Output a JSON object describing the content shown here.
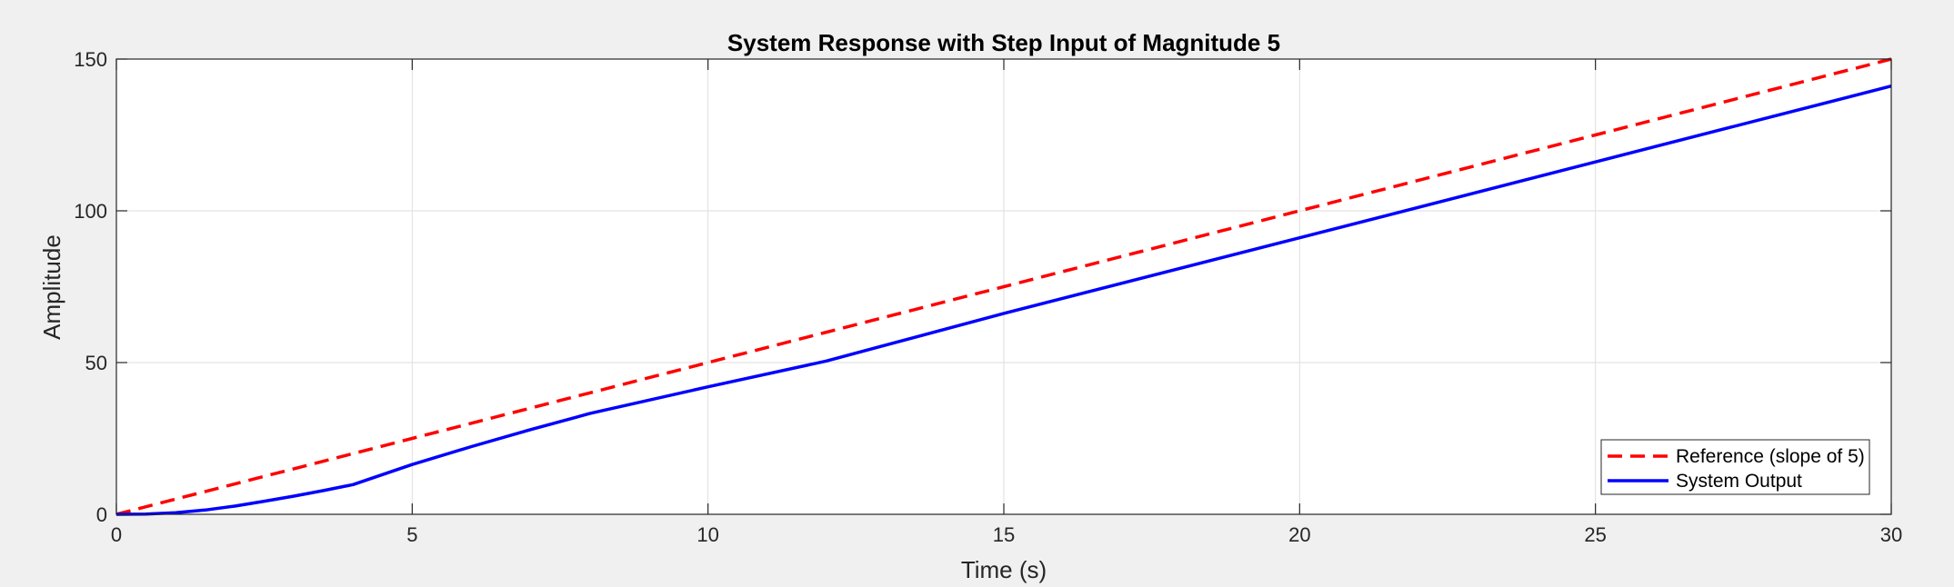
{
  "chart_data": {
    "type": "line",
    "title": "System Response with Step Input of Magnitude 5",
    "xlabel": "Time (s)",
    "ylabel": "Amplitude",
    "xlim": [
      0,
      30
    ],
    "ylim": [
      0,
      150
    ],
    "xticks": [
      0,
      5,
      10,
      15,
      20,
      25,
      30
    ],
    "yticks": [
      0,
      50,
      100,
      150
    ],
    "xtick_labels": [
      "0",
      "5",
      "10",
      "15",
      "20",
      "25",
      "30"
    ],
    "ytick_labels": [
      "0",
      "50",
      "100",
      "150"
    ],
    "grid": true,
    "legend_position": "bottom-right",
    "series": [
      {
        "name": "Reference (slope of 5)",
        "color": "#ff0000",
        "style": "dashed",
        "x": [
          0,
          5,
          10,
          15,
          20,
          25,
          30
        ],
        "values": [
          0,
          25,
          50,
          75,
          100,
          125,
          150
        ]
      },
      {
        "name": "System Output",
        "color": "#0000ff",
        "style": "solid",
        "x": [
          0,
          0.5,
          1,
          1.5,
          2,
          2.5,
          3,
          3.5,
          4,
          5,
          6,
          7,
          8,
          10,
          12,
          15,
          20,
          25,
          30
        ],
        "values": [
          0,
          0.1,
          0.5,
          1.4,
          2.7,
          4.3,
          6.0,
          7.8,
          9.8,
          16.4,
          22.3,
          27.9,
          33.2,
          42.0,
          50.5,
          66.2,
          91.1,
          116.1,
          141.1
        ]
      }
    ]
  }
}
